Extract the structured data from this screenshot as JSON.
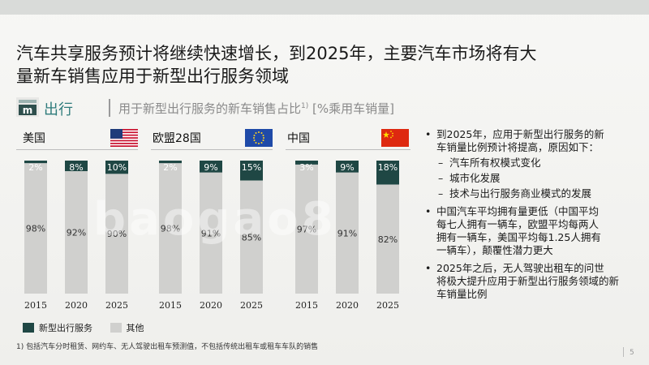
{
  "slide": {
    "title_line1": "汽车共享服务预计将继续快速增长，到2025年，主要汽车市场将有大",
    "title_line2": "量新车销售应用于新型出行服务领域",
    "section": "出行",
    "subtitle": "用于新型出行服务的新车销售占比",
    "subtitle_sup": "1)",
    "subtitle_unit": "[%乘用车销量]",
    "page_number": "5",
    "footnote": "1) 包括汽车分时租赁、网约车、无人驾驶出租车预测值，不包括传统出租车或租车车队的销售",
    "watermark": "baogao8"
  },
  "colors": {
    "new_mobility": "#1f4744",
    "other": "#d0d0ce",
    "accent": "#2e7b7b"
  },
  "legend": {
    "new_mobility": "新型出行服务",
    "other": "其他"
  },
  "countries": [
    {
      "name": "美国",
      "flag": "us-flag-icon"
    },
    {
      "name": "欧盟28国",
      "flag": "eu-flag-icon"
    },
    {
      "name": "中国",
      "flag": "china-flag-icon"
    }
  ],
  "chart_data": [
    {
      "type": "bar",
      "stacked": true,
      "title": "美国",
      "categories": [
        "2015",
        "2020",
        "2025"
      ],
      "series": [
        {
          "name": "新型出行服务",
          "values": [
            2,
            8,
            10
          ]
        },
        {
          "name": "其他",
          "values": [
            98,
            92,
            90
          ]
        }
      ],
      "ylim": [
        0,
        100
      ]
    },
    {
      "type": "bar",
      "stacked": true,
      "title": "欧盟28国",
      "categories": [
        "2015",
        "2020",
        "2025"
      ],
      "series": [
        {
          "name": "新型出行服务",
          "values": [
            2,
            9,
            15
          ]
        },
        {
          "name": "其他",
          "values": [
            98,
            91,
            85
          ]
        }
      ],
      "ylim": [
        0,
        100
      ]
    },
    {
      "type": "bar",
      "stacked": true,
      "title": "中国",
      "categories": [
        "2015",
        "2020",
        "2025"
      ],
      "series": [
        {
          "name": "新型出行服务",
          "values": [
            3,
            9,
            18
          ]
        },
        {
          "name": "其他",
          "values": [
            97,
            91,
            82
          ]
        }
      ],
      "ylim": [
        0,
        100
      ]
    }
  ],
  "bullets": {
    "b1_line1": "到2025年，应用于新型出行服务的新",
    "b1_line2": "车销量比例预计将提高，原因如下：",
    "b1_sub1": "汽车所有权模式变化",
    "b1_sub2": "城市化发展",
    "b1_sub3": "技术与出行服务商业模式的发展",
    "b2_line1": "中国汽车平均拥有量更低（中国平均",
    "b2_line2": "每七人拥有一辆车，欧盟平均每两人",
    "b2_line3": "拥有一辆车，美国平均每1.25人拥有",
    "b2_line4": "一辆车），颠覆性潜力更大",
    "b3_line1": "2025年之后，无人驾驶出租车的问世",
    "b3_line2": "将极大提升应用于新型出行服务领域的新",
    "b3_line3": "车销量比例"
  }
}
